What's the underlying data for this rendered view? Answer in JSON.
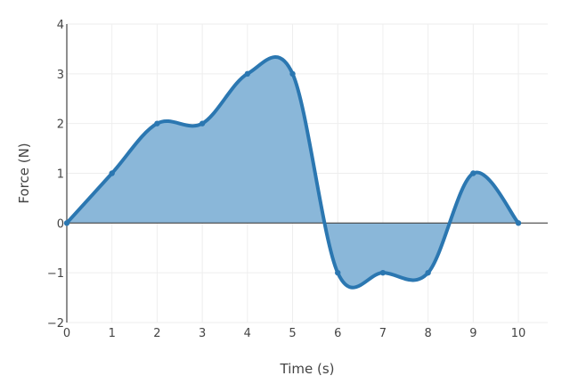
{
  "chart_data": {
    "type": "area",
    "xlabel": "Time (s)",
    "ylabel": "Force (N)",
    "xlim": [
      0,
      10.65
    ],
    "ylim": [
      -2,
      4
    ],
    "grid": true,
    "x_ticks": [
      0,
      1,
      2,
      3,
      4,
      5,
      6,
      7,
      8,
      9,
      10
    ],
    "y_ticks": [
      -2,
      -1,
      0,
      1,
      2,
      3,
      4
    ],
    "y_tick_labels": [
      "−2",
      "−1",
      "0",
      "1",
      "2",
      "3",
      "4"
    ],
    "series": [
      {
        "x": [
          0,
          1,
          2,
          3,
          4,
          5,
          6,
          7,
          8,
          9,
          10
        ],
        "values": [
          0,
          1,
          2,
          2,
          3,
          3,
          -1,
          -1,
          -1,
          1,
          0
        ],
        "line_shape": "spline",
        "fill": "tozeroy"
      }
    ],
    "colors": {
      "line": "#2b77b1",
      "fill": "#8ab7d9",
      "grid": "#eeeeee",
      "zero_line": "#444444"
    }
  }
}
